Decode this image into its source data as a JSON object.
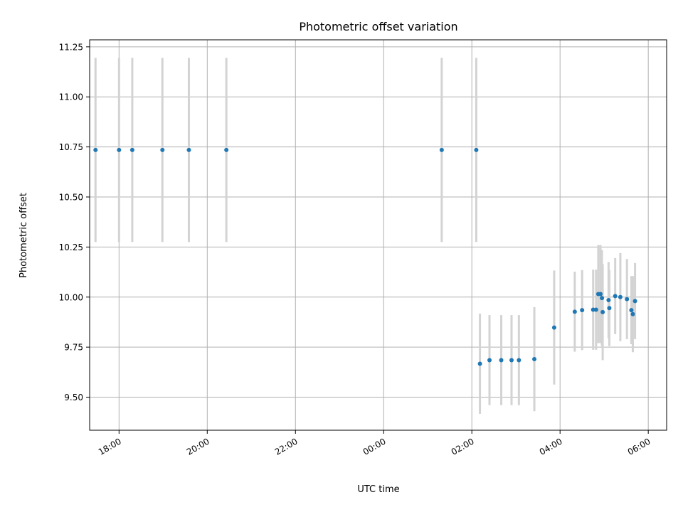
{
  "chart_data": {
    "type": "scatter",
    "title": "Photometric offset variation",
    "xlabel": "UTC time",
    "ylabel": "Photometric offset",
    "x_axis": {
      "kind": "time",
      "start": "17:20",
      "end": "06:25",
      "ticks": [
        "18:00",
        "20:00",
        "22:00",
        "00:00",
        "02:00",
        "04:00",
        "06:00"
      ]
    },
    "y_axis": {
      "range": [
        9.335,
        11.285
      ],
      "ticks": [
        "9.50",
        "9.75",
        "10.00",
        "10.25",
        "10.50",
        "10.75",
        "11.00",
        "11.25"
      ]
    },
    "grid": true,
    "legend": "none",
    "colors": {
      "point": "#1f77b4",
      "errorbar": "#d3d3d3",
      "grid": "#b0b0b0"
    },
    "series": [
      {
        "points": [
          {
            "t": "17:28",
            "y": 10.735,
            "err": 0.46
          },
          {
            "t": "18:00",
            "y": 10.735,
            "err": 0.46
          },
          {
            "t": "18:18",
            "y": 10.735,
            "err": 0.46
          },
          {
            "t": "18:59",
            "y": 10.735,
            "err": 0.46
          },
          {
            "t": "19:35",
            "y": 10.735,
            "err": 0.46
          },
          {
            "t": "20:26",
            "y": 10.735,
            "err": 0.46
          },
          {
            "t": "01:19",
            "y": 10.735,
            "err": 0.46
          },
          {
            "t": "02:06",
            "y": 10.735,
            "err": 0.46
          },
          {
            "t": "02:11",
            "y": 9.667,
            "err": 0.25
          },
          {
            "t": "02:24",
            "y": 9.685,
            "err": 0.225
          },
          {
            "t": "02:40",
            "y": 9.685,
            "err": 0.225
          },
          {
            "t": "02:54",
            "y": 9.685,
            "err": 0.225
          },
          {
            "t": "03:04",
            "y": 9.685,
            "err": 0.225
          },
          {
            "t": "03:25",
            "y": 9.69,
            "err": 0.26
          },
          {
            "t": "03:52",
            "y": 9.848,
            "err": 0.285
          },
          {
            "t": "04:20",
            "y": 9.927,
            "err": 0.2
          },
          {
            "t": "04:30",
            "y": 9.935,
            "err": 0.2
          },
          {
            "t": "04:45",
            "y": 9.937,
            "err": 0.2
          },
          {
            "t": "04:49",
            "y": 9.937,
            "err": 0.2
          },
          {
            "t": "04:52",
            "y": 10.015,
            "err": 0.245
          },
          {
            "t": "04:55",
            "y": 10.015,
            "err": 0.245
          },
          {
            "t": "04:57",
            "y": 9.995,
            "err": 0.24
          },
          {
            "t": "04:58",
            "y": 9.925,
            "err": 0.24
          },
          {
            "t": "05:06",
            "y": 9.985,
            "err": 0.19
          },
          {
            "t": "05:07",
            "y": 9.945,
            "err": 0.19
          },
          {
            "t": "05:15",
            "y": 10.005,
            "err": 0.19
          },
          {
            "t": "05:22",
            "y": 10.0,
            "err": 0.22
          },
          {
            "t": "05:31",
            "y": 9.99,
            "err": 0.2
          },
          {
            "t": "05:37",
            "y": 9.935,
            "err": 0.17
          },
          {
            "t": "05:39",
            "y": 9.915,
            "err": 0.19
          },
          {
            "t": "05:42",
            "y": 9.98,
            "err": 0.19
          }
        ]
      }
    ]
  }
}
